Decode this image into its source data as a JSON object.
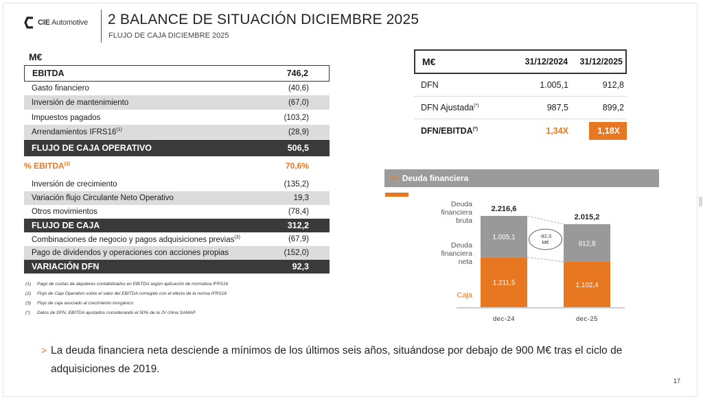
{
  "header": {
    "logo_text_bold": "CIE",
    "logo_text": "Automotive",
    "title": "2 BALANCE DE SITUACIÓN DICIEMBRE 2025",
    "subtitle": "FLUJO DE CAJA DICIEMBRE 2025"
  },
  "cashflow": {
    "unit": "M€",
    "rows": [
      {
        "label": "EBITDA",
        "value": "746,2",
        "style": "outlined"
      },
      {
        "label": "Gasto financiero",
        "value": "(40,6)",
        "style": "plain"
      },
      {
        "label": "Inversión de mantenimiento",
        "value": "(67,0)",
        "style": "grey"
      },
      {
        "label": "Impuestos pagados",
        "value": "(103,2)",
        "style": "plain"
      },
      {
        "label": "Arrendamientos IFRS16",
        "sup": "(1)",
        "value": "(28,9)",
        "style": "grey"
      },
      {
        "label": "FLUJO DE CAJA OPERATIVO",
        "value": "506,5",
        "style": "dark"
      },
      {
        "label": "% EBITDA",
        "sup": "(2)",
        "value": "70,6%",
        "style": "orange"
      },
      {
        "label": "Inversión de crecimiento",
        "value": "(135,2)",
        "style": "plain"
      },
      {
        "label": "Variación flujo Circulante Neto Operativo",
        "value": "19,3",
        "style": "grey"
      },
      {
        "label": "Otros movimientos",
        "value": "(78,4)",
        "style": "plain"
      },
      {
        "label": "FLUJO DE CAJA",
        "value": "312,2",
        "style": "dark"
      },
      {
        "label": "Combinaciones de negocio y pagos adquisiciones previas",
        "sup": "(3)",
        "value": "(67,9)",
        "style": "plain"
      },
      {
        "label": "Pago de dividendos y operaciones con acciones propias",
        "value": "(152,0)",
        "style": "grey"
      },
      {
        "label": "VARIACIÓN DFN",
        "value": "92,3",
        "style": "dark"
      }
    ]
  },
  "footnotes": [
    {
      "mark": "(1)",
      "text": "Pago de cuotas de alquileres contabilizados en EBITDA según aplicación de normativa IFRS16"
    },
    {
      "mark": "(2)",
      "text": "Flujo de Caja Operativo sobre el valor del EBITDA corregido con el efecto de la norma IFRS16"
    },
    {
      "mark": "(3)",
      "text": "Flujo de caja asociado al crecimiento inorgánico"
    },
    {
      "mark": "(*)",
      "text": "Datos de DFN, EBITDA ajustados considerando el 50% de la JV china SAMAP"
    }
  ],
  "debt_table": {
    "header": [
      "M€",
      "31/12/2024",
      "31/12/2025"
    ],
    "rows": [
      {
        "label": "DFN",
        "v2024": "1.005,1",
        "v2025": "912,8"
      },
      {
        "label": "DFN Ajustada",
        "sup": "(*)",
        "v2024": "987,5",
        "v2025": "899,2"
      },
      {
        "label": "DFN/EBITDA",
        "sup": "(*)",
        "v2024": "1,34X",
        "v2025": "1,18X"
      }
    ]
  },
  "debt_section": {
    "title": "Deuda financiera"
  },
  "chart_data": {
    "type": "bar",
    "stacked": true,
    "categories": [
      "dec-24",
      "dec-25"
    ],
    "series": [
      {
        "name": "Caja",
        "values": [
          1211.5,
          1102.4
        ],
        "color": "#e87722"
      },
      {
        "name": "Deuda financiera neta",
        "values": [
          1005.1,
          912.8
        ],
        "color": "#999999"
      }
    ],
    "totals": [
      2216.6,
      2015.2
    ],
    "total_labels": [
      "2.216,6",
      "2.015,2"
    ],
    "segment_labels": {
      "Caja": [
        "1.211,5",
        "1.102,4"
      ],
      "Deuda financiera neta": [
        "1.005,1",
        "912,8"
      ]
    },
    "row_labels": {
      "bruta": [
        "Deuda",
        "financiera",
        "bruta"
      ],
      "neta": [
        "Deuda",
        "financiera",
        "neta"
      ],
      "caja": "Caja"
    },
    "annotation": [
      "-92,3",
      "M€"
    ],
    "ylim": [
      0,
      2300
    ]
  },
  "conclusion": "La deuda financiera neta desciende a mínimos de los últimos seis años, situándose por debajo de 900 M€ tras el ciclo de adquisiciones de 2019.",
  "page_number": "17",
  "colors": {
    "accent": "#e87722",
    "dark_row": "#3a3a3a",
    "grey_row": "#dcdcdc",
    "bar_grey": "#999999"
  }
}
